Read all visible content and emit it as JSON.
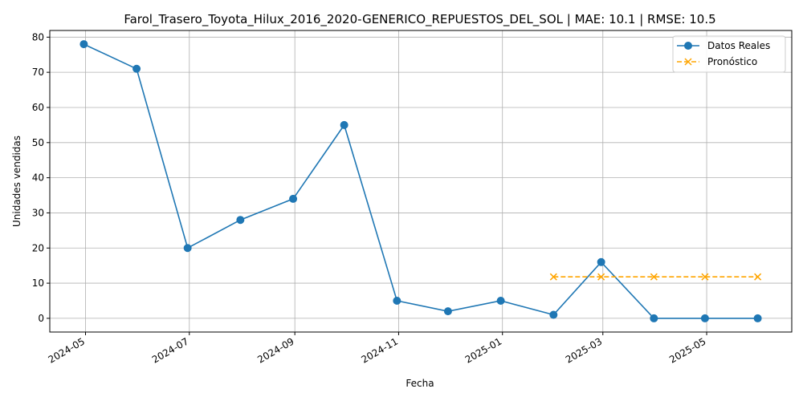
{
  "chart_data": {
    "type": "line",
    "title": "Farol_Trasero_Toyota_Hilux_2016_2020-GENERICO_REPUESTOS_DEL_SOL | MAE: 10.1 | RMSE: 10.5",
    "xlabel": "Fecha",
    "ylabel": "Unidades vendidas",
    "ylim": [
      -3.9,
      81.9
    ],
    "yticks": [
      0,
      10,
      20,
      30,
      40,
      50,
      60,
      70,
      80
    ],
    "xlim": [
      "2024-04-10",
      "2025-06-20"
    ],
    "xticks": [
      "2024-05",
      "2024-07",
      "2024-09",
      "2024-11",
      "2025-01",
      "2025-03",
      "2025-05"
    ],
    "grid": true,
    "legend_position": "top-right",
    "series": [
      {
        "name": "Datos Reales",
        "color": "#1f77b4",
        "marker": "circle",
        "linestyle": "solid",
        "points": [
          {
            "x": "2024-04-30",
            "y": 78
          },
          {
            "x": "2024-05-31",
            "y": 71
          },
          {
            "x": "2024-06-30",
            "y": 20
          },
          {
            "x": "2024-07-31",
            "y": 28
          },
          {
            "x": "2024-08-31",
            "y": 34
          },
          {
            "x": "2024-09-30",
            "y": 55
          },
          {
            "x": "2024-10-31",
            "y": 5
          },
          {
            "x": "2024-11-30",
            "y": 2
          },
          {
            "x": "2024-12-31",
            "y": 5
          },
          {
            "x": "2025-01-31",
            "y": 1
          },
          {
            "x": "2025-02-28",
            "y": 16
          },
          {
            "x": "2025-03-31",
            "y": 0
          },
          {
            "x": "2025-04-30",
            "y": 0
          },
          {
            "x": "2025-05-31",
            "y": 0
          }
        ]
      },
      {
        "name": "Pronóstico",
        "color": "#ffa500",
        "marker": "x",
        "linestyle": "dashed",
        "points": [
          {
            "x": "2025-01-31",
            "y": 11.8
          },
          {
            "x": "2025-02-28",
            "y": 11.8
          },
          {
            "x": "2025-03-31",
            "y": 11.8
          },
          {
            "x": "2025-04-30",
            "y": 11.8
          },
          {
            "x": "2025-05-31",
            "y": 11.8
          }
        ]
      }
    ]
  }
}
